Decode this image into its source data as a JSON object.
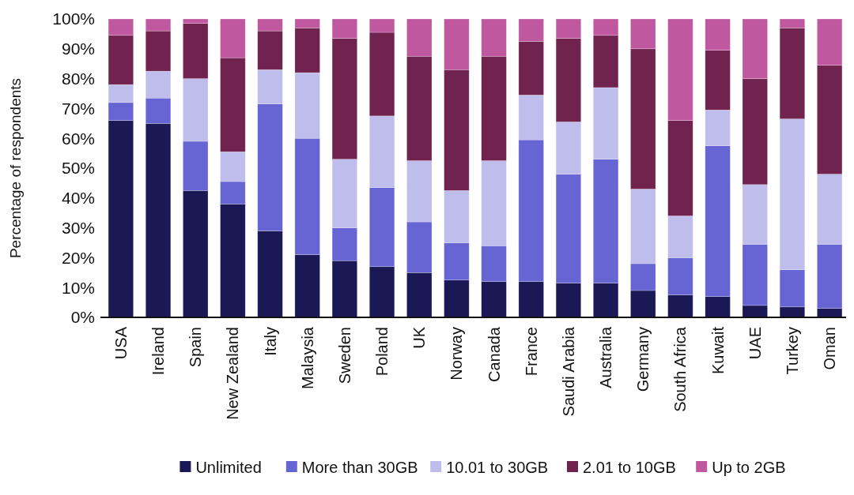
{
  "chart_data": {
    "type": "bar",
    "stacked": true,
    "ylabel": "Percentage of respondents",
    "categories": [
      "USA",
      "Ireland",
      "Spain",
      "New Zealand",
      "Italy",
      "Malaysia",
      "Sweden",
      "Poland",
      "UK",
      "Norway",
      "Canada",
      "France",
      "Saudi Arabia",
      "Australia",
      "Germany",
      "South Africa",
      "Kuwait",
      "UAE",
      "Turkey",
      "Oman"
    ],
    "series": [
      {
        "name": "Unlimited",
        "color": "#1a1855",
        "values": [
          66,
          65,
          42.5,
          38,
          29,
          21,
          19,
          17,
          15,
          12.5,
          12,
          12,
          11.5,
          11.5,
          9,
          7.5,
          7,
          4,
          3.5,
          3
        ]
      },
      {
        "name": "More than 30GB",
        "color": "#6764d4",
        "values": [
          6,
          8.5,
          16.5,
          7.5,
          42.5,
          39,
          11,
          26.5,
          17,
          12.5,
          12,
          47.5,
          36.5,
          41.5,
          9,
          12.5,
          50.5,
          20.5,
          12.5,
          21.5
        ]
      },
      {
        "name": "10.01 to 30GB",
        "color": "#bfbdec",
        "values": [
          6,
          9,
          21,
          10,
          11.5,
          22,
          23,
          24,
          20.5,
          17.5,
          28.5,
          15,
          17.5,
          24,
          25,
          14,
          12,
          20,
          50.5,
          23.5
        ]
      },
      {
        "name": "2.01 to 10GB",
        "color": "#70234e",
        "values": [
          16.5,
          13.5,
          18.5,
          31.5,
          13,
          15,
          40.5,
          28,
          35,
          40.5,
          35,
          18,
          28,
          17.5,
          47,
          32,
          20,
          35.5,
          30.5,
          36.5
        ]
      },
      {
        "name": "Up to 2GB",
        "color": "#c058a0",
        "values": [
          5.5,
          4,
          1.5,
          13,
          4,
          3,
          6.5,
          4.5,
          12.5,
          17,
          12.5,
          7.5,
          6.5,
          5.5,
          10,
          34,
          10.5,
          20,
          3,
          15.5
        ]
      }
    ],
    "ylim": [
      0,
      100
    ],
    "yticks": [
      {
        "value": 0,
        "label": "0%"
      },
      {
        "value": 10,
        "label": "10%"
      },
      {
        "value": 20,
        "label": "20%"
      },
      {
        "value": 30,
        "label": "30%"
      },
      {
        "value": 40,
        "label": "40%"
      },
      {
        "value": 50,
        "label": "50%"
      },
      {
        "value": 60,
        "label": "60%"
      },
      {
        "value": 70,
        "label": "70%"
      },
      {
        "value": 80,
        "label": "80%"
      },
      {
        "value": 90,
        "label": "90%"
      },
      {
        "value": 100,
        "label": "100%"
      }
    ],
    "legend": "bottom"
  }
}
